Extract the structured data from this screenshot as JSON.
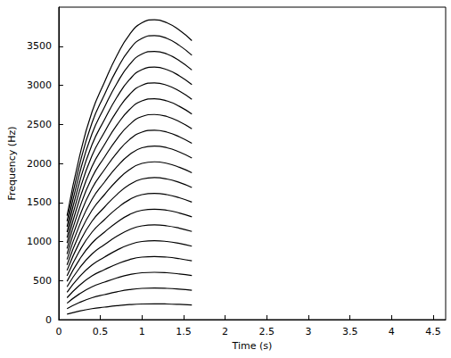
{
  "chart_data": {
    "type": "line",
    "xlabel": "Time (s)",
    "ylabel": "Frequency (Hz)",
    "x": [
      0.1,
      0.25,
      0.4,
      0.55,
      0.7,
      0.85,
      1.0,
      1.15,
      1.3,
      1.45,
      1.6
    ],
    "series": [
      {
        "color": "#000000",
        "values": [
          70,
          110,
          140,
          160,
          178,
          192,
          200,
          202,
          200,
          195,
          188
        ]
      },
      {
        "color": "#000000",
        "values": [
          140,
          220,
          280,
          320,
          356,
          384,
          400,
          404,
          400,
          390,
          376
        ]
      },
      {
        "color": "#000000",
        "values": [
          210,
          330,
          420,
          480,
          534,
          576,
          600,
          606,
          600,
          585,
          564
        ]
      },
      {
        "color": "#000000",
        "values": [
          280,
          440,
          560,
          640,
          712,
          768,
          800,
          808,
          800,
          780,
          752
        ]
      },
      {
        "color": "#000000",
        "values": [
          350,
          550,
          700,
          800,
          890,
          960,
          1000,
          1010,
          1000,
          975,
          940
        ]
      },
      {
        "color": "#000000",
        "values": [
          420,
          660,
          840,
          960,
          1068,
          1152,
          1200,
          1212,
          1200,
          1170,
          1128
        ]
      },
      {
        "color": "#000000",
        "values": [
          490,
          770,
          980,
          1120,
          1246,
          1344,
          1400,
          1414,
          1400,
          1365,
          1316
        ]
      },
      {
        "color": "#000000",
        "values": [
          560,
          880,
          1120,
          1280,
          1424,
          1536,
          1600,
          1616,
          1600,
          1560,
          1504
        ]
      },
      {
        "color": "#000000",
        "values": [
          630,
          990,
          1260,
          1440,
          1602,
          1728,
          1800,
          1818,
          1800,
          1755,
          1692
        ]
      },
      {
        "color": "#000000",
        "values": [
          700,
          1100,
          1400,
          1600,
          1780,
          1920,
          2000,
          2020,
          2000,
          1950,
          1880
        ]
      },
      {
        "color": "#000000",
        "values": [
          770,
          1210,
          1540,
          1760,
          1958,
          2112,
          2200,
          2222,
          2200,
          2145,
          2068
        ]
      },
      {
        "color": "#000000",
        "values": [
          840,
          1320,
          1680,
          1920,
          2136,
          2304,
          2400,
          2424,
          2400,
          2340,
          2256
        ]
      },
      {
        "color": "#000000",
        "values": [
          910,
          1430,
          1820,
          2080,
          2314,
          2496,
          2600,
          2626,
          2600,
          2535,
          2444
        ]
      },
      {
        "color": "#000000",
        "values": [
          980,
          1540,
          1960,
          2240,
          2492,
          2688,
          2800,
          2828,
          2800,
          2730,
          2632
        ]
      },
      {
        "color": "#000000",
        "values": [
          1050,
          1650,
          2100,
          2400,
          2670,
          2880,
          3000,
          3030,
          3000,
          2925,
          2820
        ]
      },
      {
        "color": "#000000",
        "values": [
          1120,
          1760,
          2240,
          2560,
          2848,
          3072,
          3200,
          3232,
          3200,
          3120,
          3008
        ]
      },
      {
        "color": "#000000",
        "values": [
          1190,
          1870,
          2380,
          2720,
          3026,
          3264,
          3400,
          3434,
          3400,
          3315,
          3196
        ]
      },
      {
        "color": "#000000",
        "values": [
          1260,
          1980,
          2520,
          2880,
          3204,
          3456,
          3600,
          3636,
          3600,
          3510,
          3384
        ]
      },
      {
        "color": "#000000",
        "values": [
          1330,
          2090,
          2660,
          3040,
          3382,
          3648,
          3800,
          3838,
          3800,
          3705,
          3572
        ]
      }
    ],
    "xlim": [
      0,
      4.65
    ],
    "xticks": [
      0,
      0.5,
      1,
      1.5,
      2,
      2.5,
      3,
      3.5,
      4,
      4.5
    ],
    "ylim": [
      0,
      4000
    ],
    "yticks": [
      0,
      500,
      1000,
      1500,
      2000,
      2500,
      3000,
      3500
    ],
    "grid": false,
    "marker": "none",
    "line_style": "solid"
  }
}
